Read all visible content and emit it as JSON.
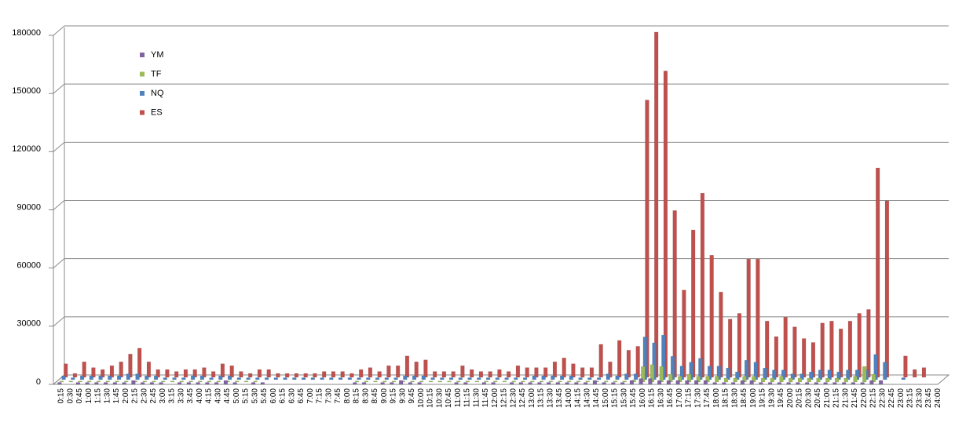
{
  "chart_data": {
    "type": "bar",
    "categories": [
      "0:15",
      "0:30",
      "0:45",
      "1:00",
      "1:15",
      "1:30",
      "1:45",
      "2:00",
      "2:15",
      "2:30",
      "2:45",
      "3:00",
      "3:15",
      "3:30",
      "3:45",
      "4:00",
      "4:15",
      "4:30",
      "4:45",
      "5:00",
      "5:15",
      "5:30",
      "5:45",
      "6:00",
      "6:15",
      "6:30",
      "6:45",
      "7:00",
      "7:15",
      "7:30",
      "7:45",
      "8:00",
      "8:15",
      "8:30",
      "8:45",
      "9:00",
      "9:15",
      "9:30",
      "9:45",
      "10:00",
      "10:15",
      "10:30",
      "10:45",
      "11:00",
      "11:15",
      "11:30",
      "11:45",
      "12:00",
      "12:15",
      "12:30",
      "12:45",
      "13:00",
      "13:15",
      "13:30",
      "13:45",
      "14:00",
      "14:15",
      "14:30",
      "14:45",
      "15:00",
      "15:15",
      "15:30",
      "15:45",
      "16:00",
      "16:15",
      "16:30",
      "16:45",
      "17:00",
      "17:15",
      "17:30",
      "17:45",
      "18:00",
      "18:15",
      "18:30",
      "18:45",
      "19:00",
      "19:15",
      "19:30",
      "19:45",
      "20:00",
      "20:15",
      "20:30",
      "20:45",
      "21:00",
      "21:15",
      "21:30",
      "21:45",
      "22:00",
      "22:15",
      "22:30",
      "22:45",
      "23:00",
      "23:15",
      "23:30",
      "23:45",
      "24:00"
    ],
    "series": [
      {
        "name": "YM",
        "color": "#8064a2",
        "values": [
          1000,
          0,
          1000,
          1000,
          1000,
          1000,
          1000,
          1000,
          2000,
          1000,
          1000,
          1000,
          0,
          1000,
          1000,
          1000,
          1000,
          1000,
          2000,
          1000,
          0,
          1000,
          1000,
          0,
          0,
          0,
          0,
          0,
          0,
          0,
          0,
          0,
          1000,
          1000,
          0,
          1000,
          1000,
          2000,
          1000,
          1000,
          0,
          0,
          0,
          1000,
          1000,
          0,
          1000,
          1000,
          0,
          1000,
          1000,
          1000,
          1000,
          1000,
          1000,
          1000,
          1000,
          1000,
          2000,
          1000,
          1000,
          1000,
          2000,
          3000,
          3000,
          2000,
          2000,
          2000,
          2000,
          2000,
          2000,
          1000,
          1000,
          1000,
          2000,
          2000,
          1000,
          1000,
          1000,
          1000,
          1000,
          1000,
          1000,
          1000,
          1000,
          1000,
          1000,
          1000,
          2000,
          2000,
          0,
          0,
          0,
          0,
          0,
          0
        ]
      },
      {
        "name": "TF",
        "color": "#9bbb59",
        "values": [
          500,
          500,
          500,
          500,
          500,
          500,
          500,
          500,
          500,
          500,
          500,
          500,
          500,
          500,
          500,
          500,
          500,
          500,
          500,
          500,
          500,
          500,
          0,
          0,
          0,
          0,
          0,
          0,
          0,
          0,
          0,
          0,
          500,
          500,
          500,
          500,
          500,
          500,
          500,
          500,
          500,
          500,
          500,
          500,
          500,
          500,
          500,
          500,
          500,
          500,
          500,
          500,
          500,
          500,
          500,
          500,
          500,
          500,
          500,
          500,
          500,
          500,
          1000,
          8000,
          9000,
          8000,
          4000,
          3000,
          4000,
          3000,
          3000,
          3000,
          2000,
          2000,
          3000,
          3000,
          2000,
          2000,
          3000,
          2000,
          2000,
          2000,
          2000,
          2000,
          2000,
          2000,
          3000,
          8000,
          4000,
          0,
          0,
          0,
          0,
          0,
          0,
          0
        ]
      },
      {
        "name": "NQ",
        "color": "#4f81bd",
        "values": [
          2000,
          1000,
          2000,
          2000,
          2000,
          2000,
          2000,
          3000,
          3000,
          2000,
          2000,
          1000,
          1000,
          1000,
          2000,
          2000,
          1000,
          2000,
          2000,
          1000,
          1000,
          1000,
          1000,
          1000,
          1000,
          1000,
          1000,
          1000,
          1000,
          1000,
          1000,
          1000,
          1000,
          1000,
          1000,
          1000,
          1000,
          2000,
          2000,
          2000,
          1000,
          1000,
          1000,
          1000,
          1000,
          1000,
          1000,
          1000,
          1000,
          1000,
          1000,
          2000,
          2000,
          2000,
          2000,
          2000,
          1000,
          1000,
          1000,
          3000,
          2000,
          3000,
          3000,
          22000,
          19000,
          23000,
          12000,
          7000,
          9000,
          11000,
          7000,
          7000,
          6000,
          4000,
          10000,
          9000,
          6000,
          5000,
          5000,
          3000,
          3000,
          4000,
          5000,
          5000,
          4000,
          5000,
          5000,
          5000,
          13000,
          9000,
          0,
          1000,
          0,
          0,
          0,
          0
        ]
      },
      {
        "name": "ES",
        "color": "#c0504d",
        "values": [
          7000,
          2000,
          8000,
          5000,
          4000,
          6000,
          8000,
          12000,
          15000,
          8000,
          4000,
          4000,
          3000,
          4000,
          4000,
          5000,
          3000,
          7000,
          6000,
          3000,
          2000,
          4000,
          4000,
          2000,
          2000,
          2000,
          2000,
          2000,
          3000,
          3000,
          3000,
          2000,
          4000,
          5000,
          3000,
          6000,
          6000,
          11000,
          8000,
          9000,
          3000,
          3000,
          3000,
          6000,
          4000,
          3000,
          3000,
          4000,
          3000,
          6000,
          5000,
          5000,
          5000,
          8000,
          10000,
          7000,
          5000,
          5000,
          17000,
          8000,
          19000,
          14000,
          16000,
          143000,
          178000,
          158000,
          86000,
          45000,
          76000,
          95000,
          63000,
          44000,
          30000,
          33000,
          61000,
          61000,
          29000,
          21000,
          31000,
          26000,
          20000,
          18000,
          28000,
          29000,
          25000,
          29000,
          33000,
          35000,
          108000,
          91000,
          0,
          11000,
          4000,
          5000,
          0,
          0
        ]
      }
    ],
    "ylim": [
      0,
      180000
    ],
    "yticks": [
      0,
      30000,
      60000,
      90000,
      120000,
      150000,
      180000
    ],
    "grid": true
  }
}
